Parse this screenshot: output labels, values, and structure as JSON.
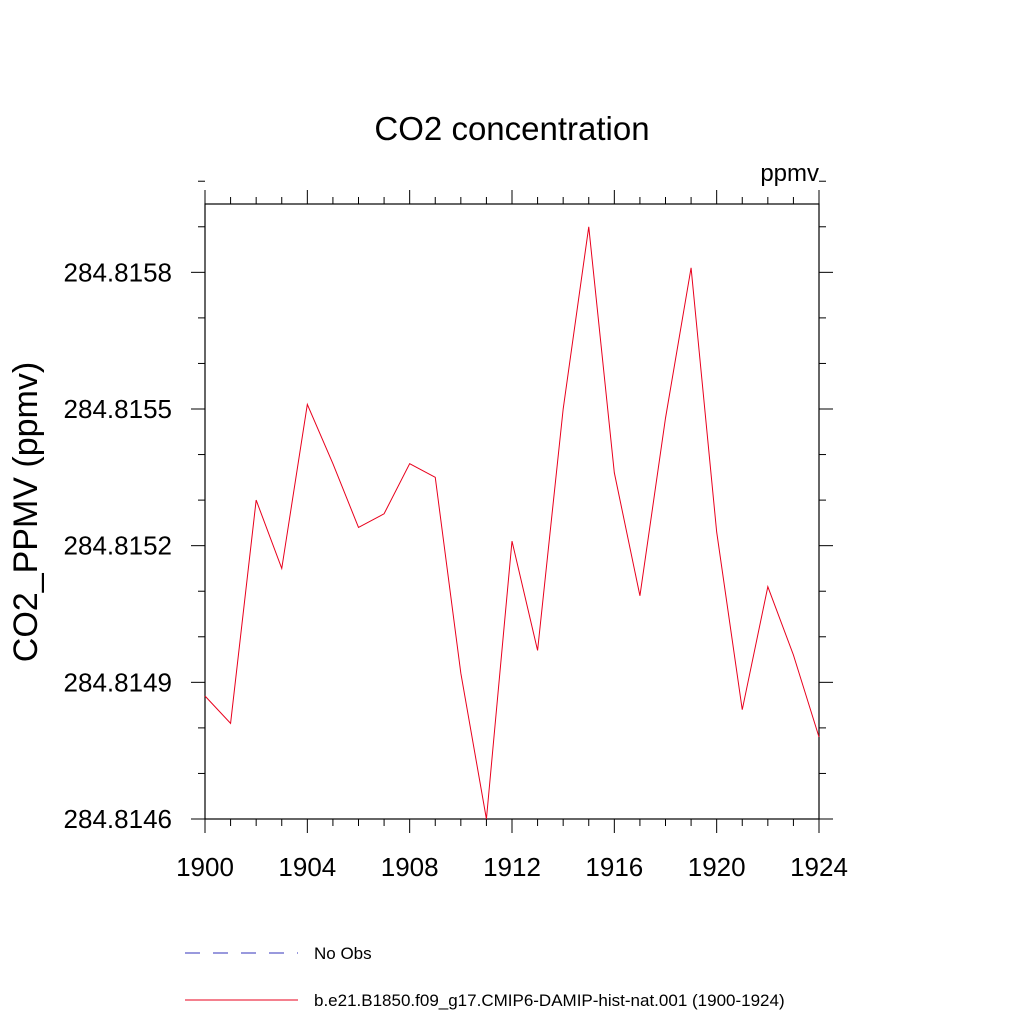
{
  "chart_data": {
    "type": "line",
    "title": "CO2 concentration",
    "units_label": "ppmv",
    "xlabel": "",
    "ylabel": "CO2_PPMV  (ppmv)",
    "xlim": [
      1900,
      1924
    ],
    "ylim": [
      284.8146,
      284.81595
    ],
    "x_ticks": [
      1900,
      1904,
      1908,
      1912,
      1916,
      1920,
      1924
    ],
    "x_tick_labels": [
      "1900",
      "1904",
      "1908",
      "1912",
      "1916",
      "1920",
      "1924"
    ],
    "y_ticks": [
      284.8146,
      284.8149,
      284.8152,
      284.8155,
      284.8158
    ],
    "y_tick_labels": [
      "284.8146",
      "284.8149",
      "284.8152",
      "284.8155",
      "284.8158"
    ],
    "grid": false,
    "legend_placement": "bottom",
    "series": [
      {
        "name": "b.e21.B1850.f09_g17.CMIP6-DAMIP-hist-nat.001 (1900-1924)",
        "color": "#e8001c",
        "style": "solid",
        "x": [
          1900,
          1901,
          1902,
          1903,
          1904,
          1905,
          1906,
          1907,
          1908,
          1909,
          1910,
          1911,
          1912,
          1913,
          1914,
          1915,
          1916,
          1917,
          1918,
          1919,
          1920,
          1921,
          1922,
          1923,
          1924
        ],
        "values": [
          284.81487,
          284.81481,
          284.8153,
          284.81515,
          284.81551,
          284.81538,
          284.81524,
          284.81527,
          284.81538,
          284.81535,
          284.81492,
          284.8146,
          284.81521,
          284.81497,
          284.8155,
          284.8159,
          284.81536,
          284.81509,
          284.81548,
          284.81581,
          284.81523,
          284.81484,
          284.81511,
          284.81496,
          284.81478
        ]
      }
    ],
    "legend": [
      {
        "label": "No Obs",
        "color": "#3333bb",
        "style": "dashed"
      },
      {
        "label": "b.e21.B1850.f09_g17.CMIP6-DAMIP-hist-nat.001 (1900-1924)",
        "color": "#e8001c",
        "style": "solid"
      }
    ]
  }
}
